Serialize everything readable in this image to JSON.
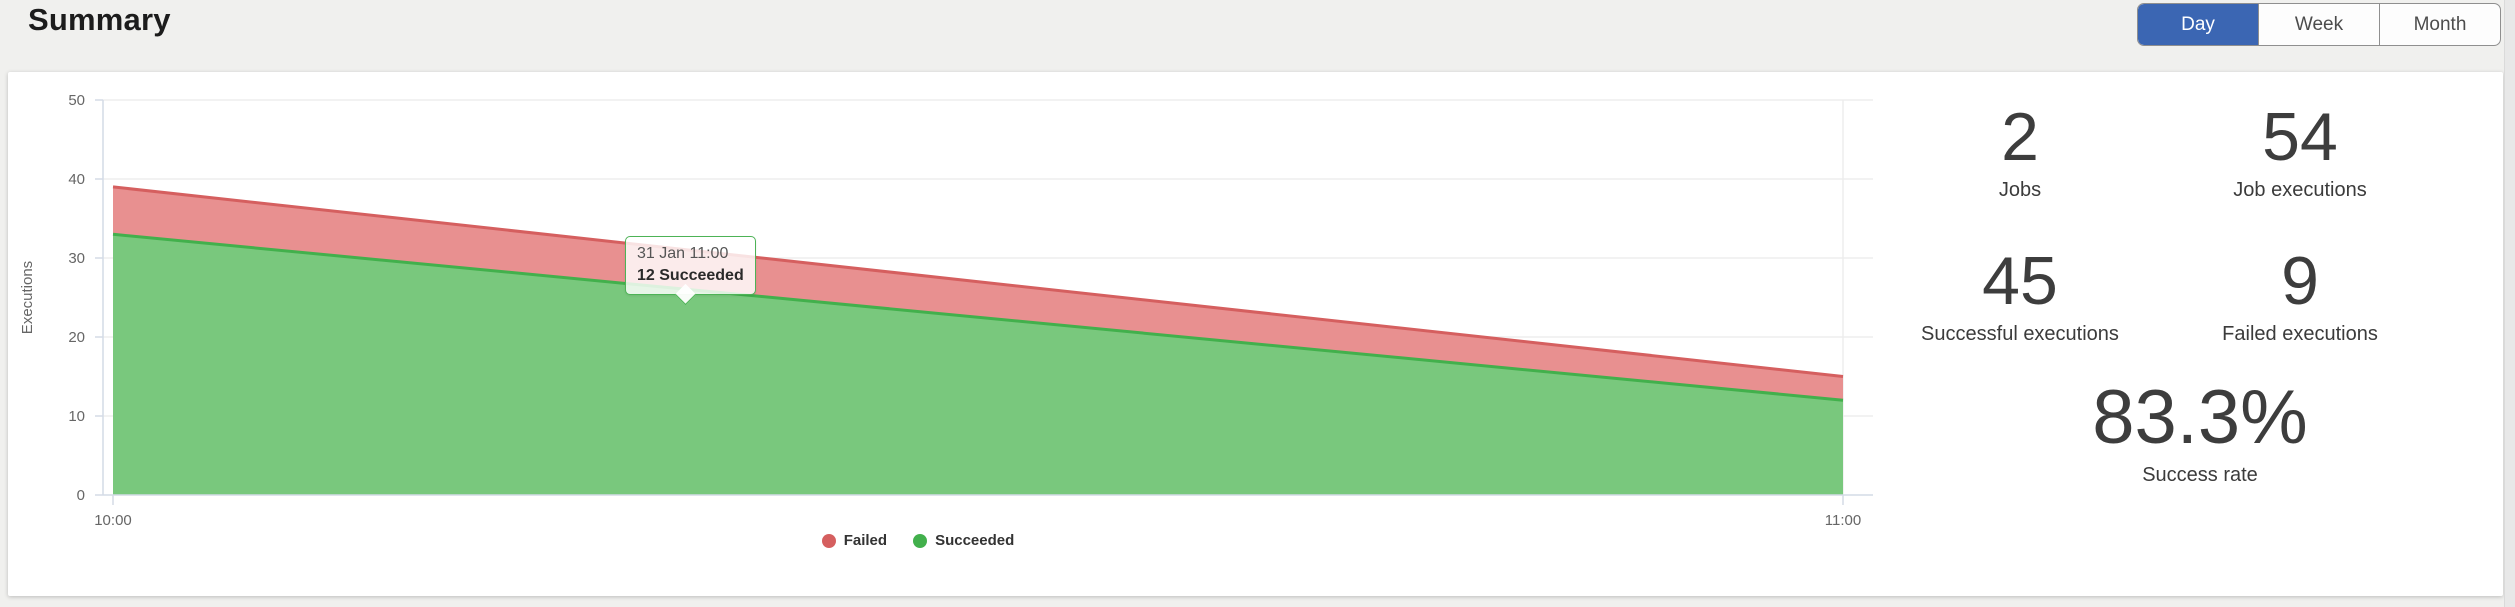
{
  "header": {
    "title": "Summary",
    "range_toggle": [
      {
        "label": "Day",
        "selected": true
      },
      {
        "label": "Week",
        "selected": false
      },
      {
        "label": "Month",
        "selected": false
      }
    ]
  },
  "colors": {
    "accent_blue": "#3b66b3",
    "failed_line": "#d55f5f",
    "failed_fill": "#e89090",
    "succeeded_line": "#42b04c",
    "succeeded_fill": "#79c87d",
    "axis_line": "#d4dbe6",
    "gridline": "#ededed",
    "axis_text": "#666666"
  },
  "chart_data": {
    "type": "area",
    "stacked": true,
    "title": "",
    "xlabel": "",
    "ylabel": "Executions",
    "x": [
      "10:00",
      "11:00"
    ],
    "ylim": [
      0,
      50
    ],
    "yticks": [
      0,
      10,
      20,
      30,
      40,
      50
    ],
    "grid": true,
    "legend_position": "bottom",
    "series": [
      {
        "name": "Failed",
        "values": [
          6,
          3
        ],
        "line_color": "#d55f5f",
        "fill_color": "#e89090"
      },
      {
        "name": "Succeeded",
        "values": [
          33,
          12
        ],
        "line_color": "#42b04c",
        "fill_color": "#79c87d"
      }
    ],
    "tooltip": {
      "line1": "31 Jan 11:00",
      "line2": "12 Succeeded"
    }
  },
  "stats": {
    "items": [
      {
        "value": "2",
        "label": "Jobs"
      },
      {
        "value": "54",
        "label": "Job executions"
      },
      {
        "value": "45",
        "label": "Successful executions"
      },
      {
        "value": "9",
        "label": "Failed executions"
      }
    ],
    "success_rate": {
      "value": "83.3%",
      "label": "Success rate"
    }
  }
}
